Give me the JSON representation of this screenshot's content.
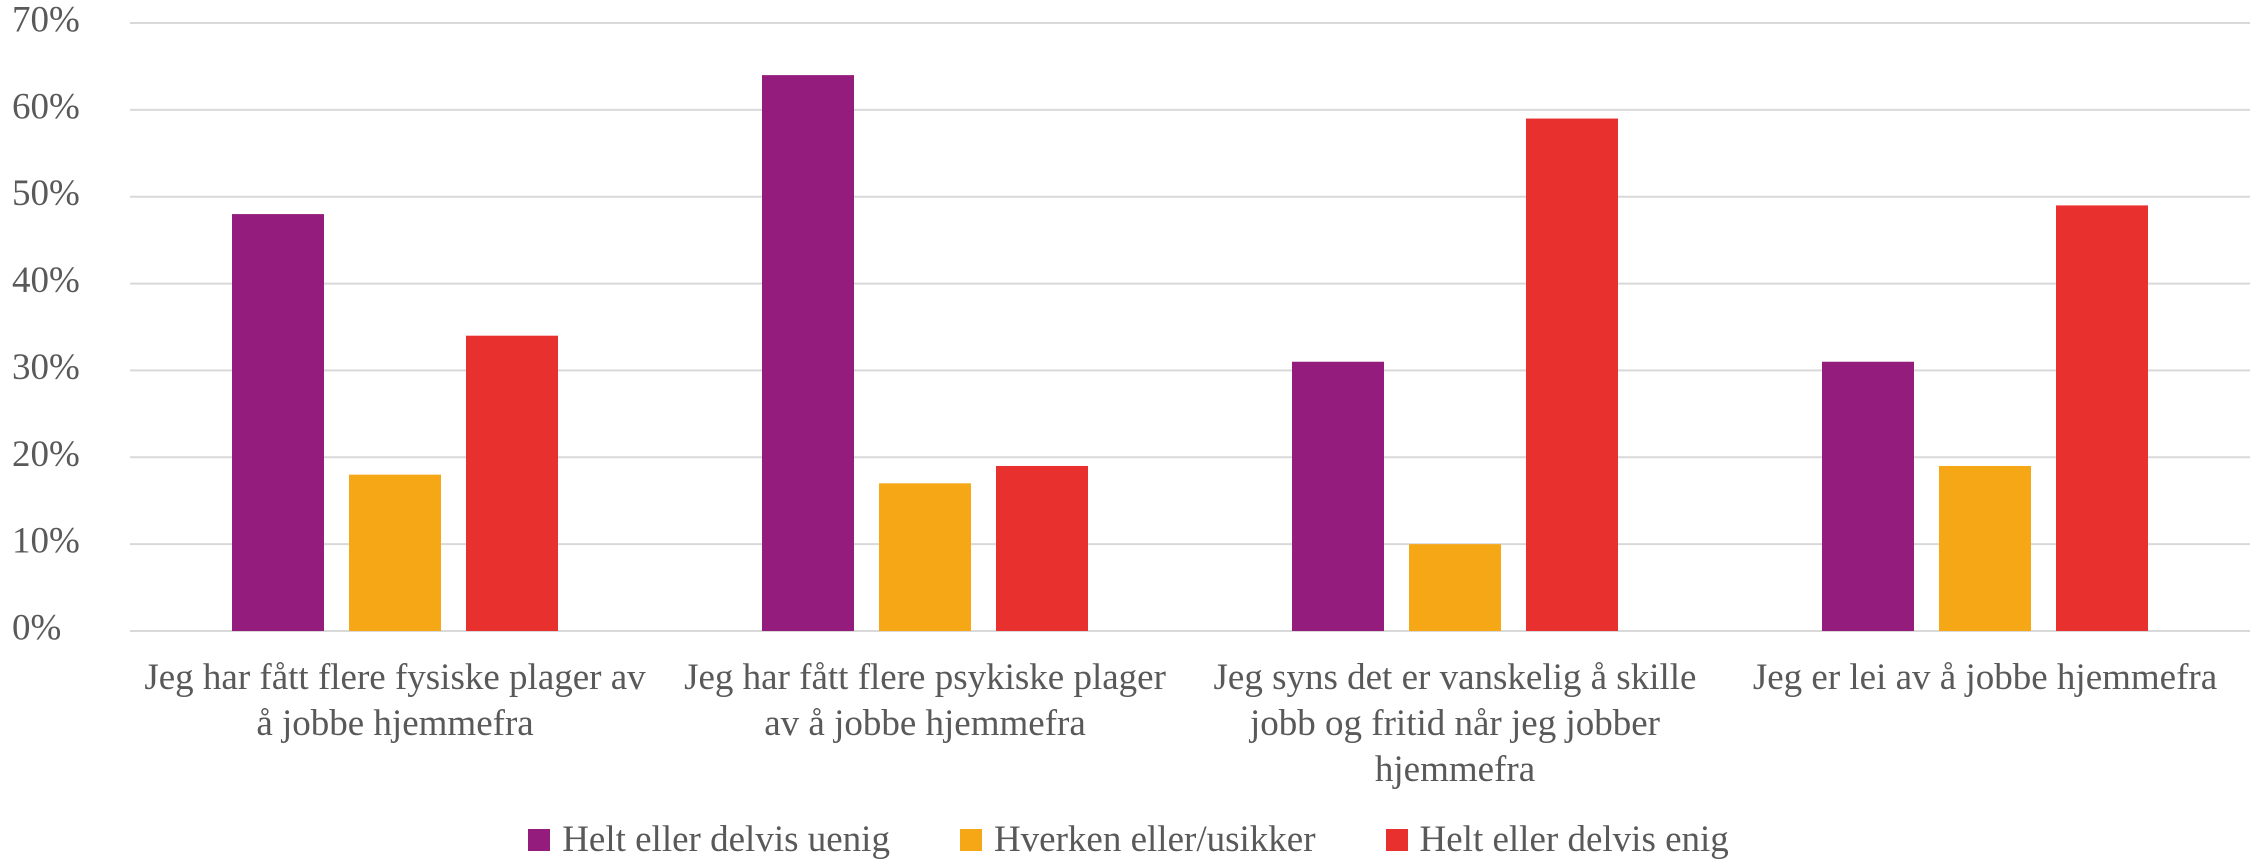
{
  "chart_data": {
    "type": "bar",
    "categories": [
      "Jeg har fått flere fysiske plager av å jobbe hjemmefra",
      "Jeg har fått flere psykiske plager av å jobbe hjemmefra",
      "Jeg syns det er vanskelig å skille jobb og fritid når jeg jobber hjemmefra",
      "Jeg er lei av å jobbe hjemmefra"
    ],
    "series": [
      {
        "name": "Helt eller delvis uenig",
        "color": "#931c7d",
        "values": [
          48,
          64,
          31,
          31
        ]
      },
      {
        "name": "Hverken eller/usikker",
        "color": "#f6a715",
        "values": [
          18,
          17,
          10,
          19
        ]
      },
      {
        "name": "Helt eller delvis enig",
        "color": "#e8312f",
        "values": [
          34,
          19,
          59,
          49
        ]
      }
    ],
    "ylim": [
      0,
      70
    ],
    "yticks": [
      {
        "value": 0,
        "label": "0%"
      },
      {
        "value": 10,
        "label": "10%"
      },
      {
        "value": 20,
        "label": "20%"
      },
      {
        "value": 30,
        "label": "30%"
      },
      {
        "value": 40,
        "label": "40%"
      },
      {
        "value": 50,
        "label": "50%"
      },
      {
        "value": 60,
        "label": "60%"
      },
      {
        "value": 70,
        "label": "70%"
      }
    ],
    "grid": true,
    "legend": "bottom"
  }
}
